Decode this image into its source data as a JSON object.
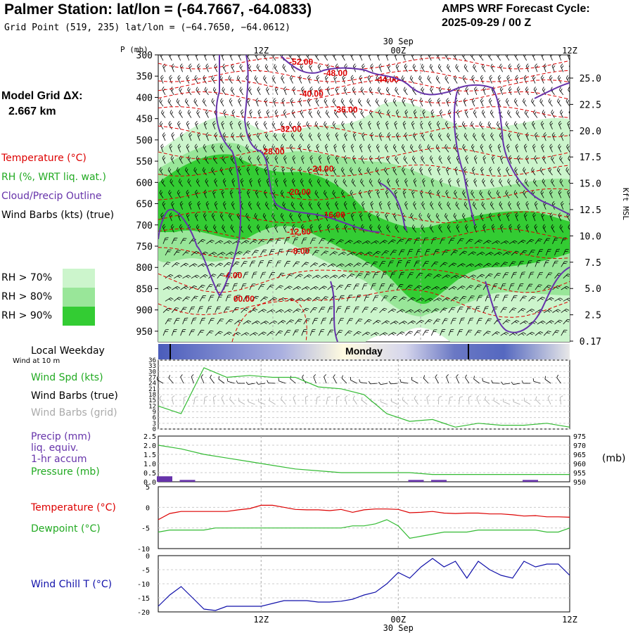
{
  "header": {
    "title": "Palmer Station:  lat/lon = (-64.7667, -64.0833)",
    "subtitle": "Grid Point (519, 235) lat/lon = (−64.7650, −64.0612)",
    "cycle_label": "AMPS WRF Forecast Cycle:",
    "cycle_value": "2025-09-29 / 00  Z"
  },
  "model_grid": {
    "label": "Model Grid ΔX:",
    "value": "2.667 km"
  },
  "legend": {
    "temperature": "Temperature (°C)",
    "rh": "RH (%, WRT liq. wat.)",
    "cloud": "Cloud/Precip Outline",
    "wind_barbs": "Wind Barbs (kts) (true)",
    "rh70": "RH > 70%",
    "rh80": "RH > 80%",
    "rh90": "RH > 90%",
    "local_weekday": "Local Weekday",
    "wind_10m": "Wind at 10 m",
    "wind_spd": "Wind Spd (kts)",
    "wind_barbs_true": "Wind Barbs (true)",
    "wind_barbs_grid": "Wind Barbs (grid)",
    "precip1": "Precip (mm)",
    "precip2": "liq. equiv.",
    "precip3": "1-hr accum",
    "pressure": "Pressure (mb)",
    "temp2": "Temperature (°C)",
    "dewpoint": "Dewpoint (°C)",
    "windchill": "Wind Chill T (°C)",
    "mb_unit": "(mb)"
  },
  "colors": {
    "temperature": "#dd0000",
    "rh70": "#ccf5cc",
    "rh80": "#99e699",
    "rh90": "#33cc33",
    "cloud": "#6633aa",
    "wind_speed": "#33bb33",
    "windchill": "#1111aa",
    "grid_barbs": "#aaaaaa",
    "weekday": "#5566bb"
  },
  "chart_data": [
    {
      "type": "heatmap",
      "name": "vertical-profile",
      "ylabel": "P (mb)",
      "right_label": "Kft MSL",
      "time_ticks": [
        "12Z",
        "00Z",
        "12Z"
      ],
      "date_label": "30 Sep",
      "pressure_ticks": [
        300,
        350,
        400,
        450,
        500,
        550,
        600,
        650,
        700,
        750,
        800,
        850,
        900,
        950
      ],
      "height_ticks": [
        "25.0",
        "22.5",
        "20.0",
        "17.5",
        "15.0",
        "12.5",
        "10.0",
        "7.5",
        "5.0",
        "2.5",
        "0.17"
      ],
      "xlim": [
        0,
        36
      ],
      "ylim": [
        300,
        975
      ],
      "temperature_labels": [
        {
          "t": 12.5,
          "p": 320,
          "text": "-52.00"
        },
        {
          "t": 15.5,
          "p": 346,
          "text": "-48.00"
        },
        {
          "t": 20,
          "p": 361,
          "text": "-44.00"
        },
        {
          "t": 13.4,
          "p": 395,
          "text": "-40.00"
        },
        {
          "t": 16.4,
          "p": 432,
          "text": "-36.00"
        },
        {
          "t": 11.5,
          "p": 478,
          "text": "-32.00"
        },
        {
          "t": 10,
          "p": 531,
          "text": "-28.00"
        },
        {
          "t": 14.3,
          "p": 571,
          "text": "-24.00"
        },
        {
          "t": 12.3,
          "p": 626,
          "text": "-20.00"
        },
        {
          "t": 15.3,
          "p": 680,
          "text": "-16.00"
        },
        {
          "t": 12.3,
          "p": 719,
          "text": "-12.00"
        },
        {
          "t": 12.4,
          "p": 765,
          "text": "-8.00"
        },
        {
          "t": 6.5,
          "p": 822,
          "text": "-4.00"
        },
        {
          "t": 7.5,
          "p": 877,
          "text": "00.00"
        }
      ]
    },
    {
      "type": "line",
      "name": "wind-speed",
      "ylabel": "Wind Spd (kts)",
      "yticks": [
        0,
        3,
        6,
        9,
        12,
        15,
        18,
        21,
        24,
        27,
        30,
        33,
        36
      ],
      "ylim": [
        0,
        36
      ],
      "x": [
        0,
        2,
        4,
        6,
        8,
        10,
        12,
        14,
        16,
        18,
        20,
        22,
        24,
        26,
        28,
        30,
        32,
        34,
        36
      ],
      "values": [
        12,
        8,
        32,
        27,
        28,
        27,
        27,
        22,
        21,
        18,
        8,
        4,
        5,
        1,
        3,
        2,
        2,
        3,
        1
      ]
    },
    {
      "type": "line",
      "name": "pressure-precip",
      "ylabel_left": "Precip (mm)",
      "ylabel_right": "Pressure (mb)",
      "yticks_left": [
        "2.5",
        "2.0",
        "1.5",
        "1.0",
        "0.5",
        "0.0"
      ],
      "yticks_right": [
        "975",
        "970",
        "965",
        "960",
        "955",
        "950"
      ],
      "ylim_left": [
        0,
        2.5
      ],
      "ylim_right": [
        950,
        975
      ],
      "x": [
        0,
        2,
        4,
        6,
        8,
        10,
        12,
        14,
        16,
        18,
        20,
        22,
        24,
        26,
        28,
        30,
        32,
        34,
        36
      ],
      "pressure": [
        970,
        968,
        965,
        963,
        961,
        959,
        957,
        956,
        955,
        955,
        955,
        955,
        954,
        954,
        954,
        954,
        954,
        954,
        954
      ],
      "precip": [
        0.3,
        0.1,
        0,
        0,
        0,
        0,
        0,
        0,
        0,
        0,
        0,
        0.1,
        0.1,
        0,
        0,
        0,
        0.1,
        0,
        0
      ]
    },
    {
      "type": "line",
      "name": "temperature-dewpoint",
      "yticks": [
        5,
        0,
        -5,
        -10
      ],
      "ylim": [
        -10,
        5
      ],
      "x": [
        0,
        1,
        2,
        3,
        4,
        5,
        6,
        7,
        8,
        9,
        10,
        11,
        12,
        13,
        14,
        15,
        16,
        17,
        18,
        19,
        20,
        21,
        22,
        23,
        24,
        25,
        26,
        27,
        28,
        29,
        30,
        31,
        32,
        33,
        34,
        35,
        36
      ],
      "temperature": [
        -3,
        -1.5,
        -1,
        -1,
        -1,
        -1,
        -1,
        -0.6,
        -0.3,
        0.5,
        0.5,
        0,
        -0.5,
        -0.6,
        -0.6,
        -0.8,
        -0.5,
        -1.2,
        -0.6,
        -0.4,
        -0.4,
        -0.5,
        -1.3,
        -1.2,
        -1,
        -1.4,
        -1.5,
        -1.4,
        -1.4,
        -1.6,
        -1.6,
        -1.8,
        -2.1,
        -2,
        -2.3,
        -2.3,
        -2.4
      ],
      "dewpoint": [
        -6,
        -5.5,
        -5.5,
        -5.5,
        -5.5,
        -5,
        -5,
        -5,
        -5,
        -5,
        -5,
        -5,
        -5,
        -5,
        -5,
        -5,
        -5,
        -4.5,
        -4.5,
        -4,
        -3,
        -4.5,
        -7.5,
        -7,
        -6.5,
        -6,
        -6,
        -6,
        -5.5,
        -5.5,
        -5.5,
        -5.5,
        -5.5,
        -5.5,
        -6,
        -6,
        -5
      ]
    },
    {
      "type": "line",
      "name": "wind-chill",
      "yticks": [
        0,
        -5,
        -10,
        -15,
        -20
      ],
      "ylim": [
        -20,
        0
      ],
      "xticks": [
        "12Z",
        "00Z",
        "12Z"
      ],
      "date_label": "30 Sep",
      "x": [
        0,
        1,
        2,
        3,
        4,
        5,
        6,
        7,
        8,
        9,
        10,
        11,
        12,
        13,
        14,
        15,
        16,
        17,
        18,
        19,
        20,
        21,
        22,
        23,
        24,
        25,
        26,
        27,
        28,
        29,
        30,
        31,
        32,
        33,
        34,
        35,
        36
      ],
      "values": [
        -18,
        -14,
        -11,
        -15,
        -19,
        -19.5,
        -18,
        -18,
        -18,
        -18,
        -17,
        -16,
        -16,
        -16,
        -16.5,
        -16.5,
        -16.2,
        -15.5,
        -14,
        -13,
        -10,
        -6,
        -8,
        -4,
        -1,
        -4,
        -2,
        -8,
        -2,
        -5,
        -7,
        -8,
        -2,
        -4,
        -3,
        -3,
        -7
      ]
    }
  ]
}
